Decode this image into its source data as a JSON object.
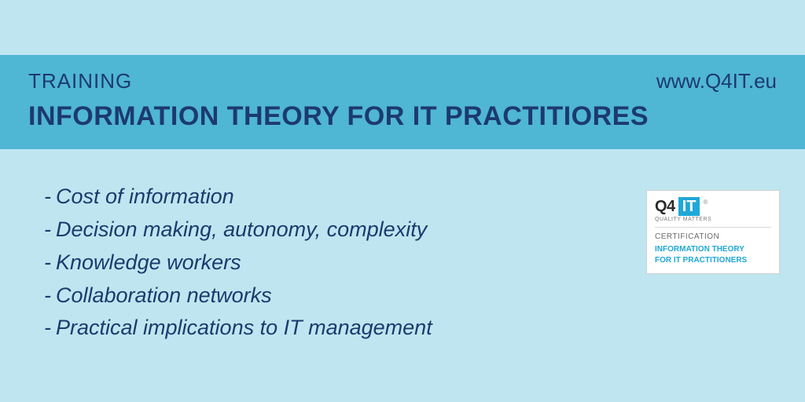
{
  "colors": {
    "page_bg": "#bfe6f0",
    "band_bg": "#4fb6d4",
    "title": "#1c3a6e",
    "bullet": "#1c3a6e",
    "badge_box_bg": "#1fa8d8",
    "badge_course": "#1fa8d8"
  },
  "header": {
    "label": "TRAINING",
    "url": "www.Q4IT.eu",
    "title": "INFORMATION THEORY FOR IT PRACTITIORES"
  },
  "bullets": {
    "prefix": "-",
    "items": [
      "Cost of information",
      "Decision making, autonomy, complexity",
      "Knowledge workers",
      "Collaboration networks",
      "Practical implications to IT management"
    ],
    "fontsize": 27,
    "font_style": "italic",
    "line_height": 1.55
  },
  "badge": {
    "logo_prefix": "Q4",
    "logo_box": "IT",
    "reg_mark": "®",
    "tagline": "QUALITY MATTERS",
    "cert_label": "CERTIFICATION",
    "course_line1": "INFORMATION THEORY",
    "course_line2": "FOR IT PRACTITIONERS"
  }
}
